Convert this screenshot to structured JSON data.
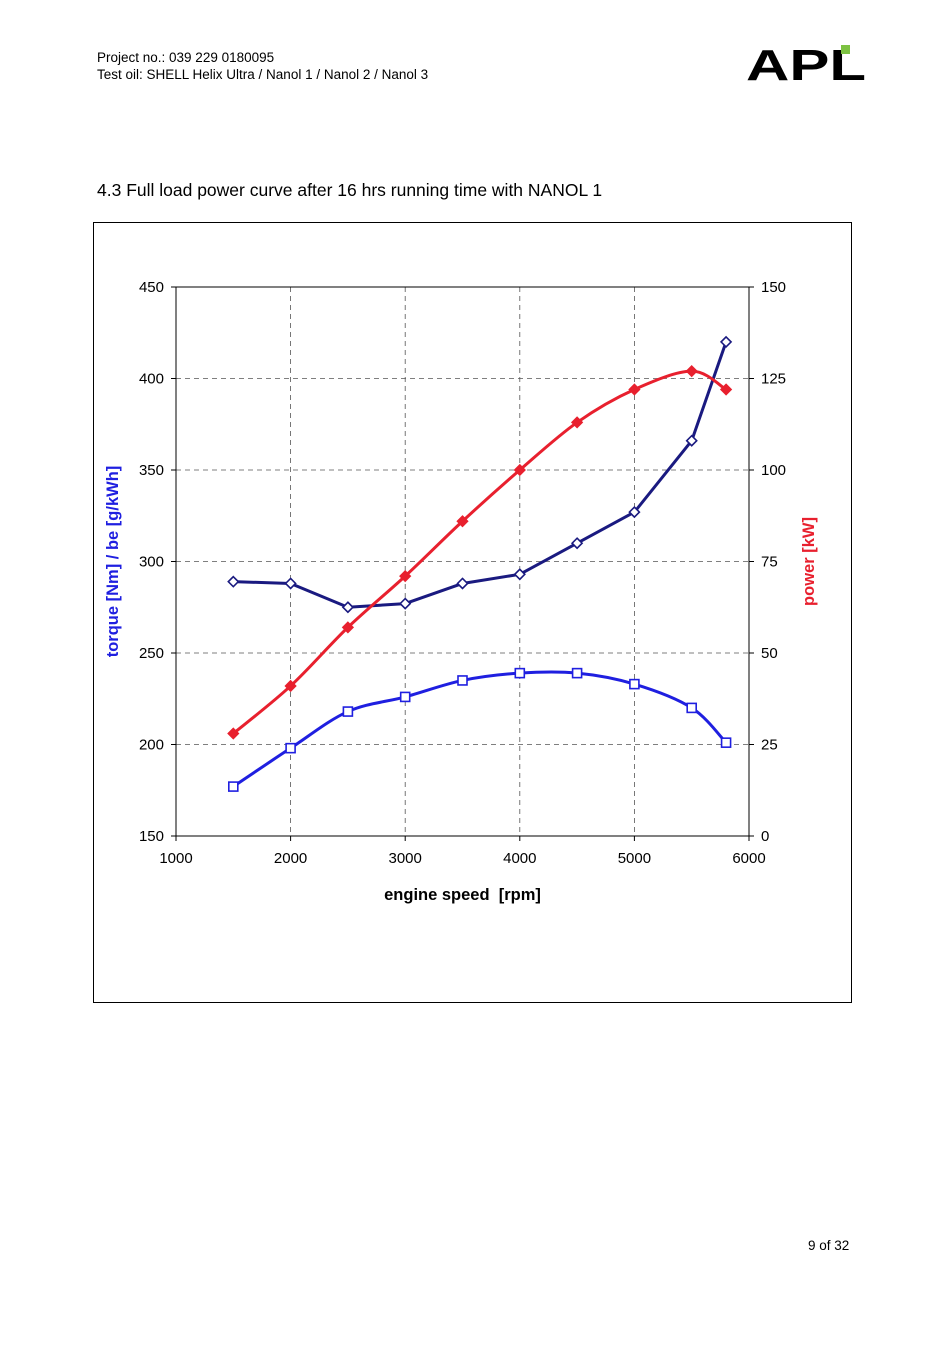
{
  "header": {
    "line1": "Project no.: 039 229 0180095",
    "line2": "Test oil: SHELL Helix Ultra / Nanol 1 / Nanol 2 / Nanol 3"
  },
  "logo": {
    "text": "APL",
    "colors": {
      "letters": "#000000",
      "accent": "#7dc242"
    }
  },
  "section_title": "4.3 Full load power curve after 16 hrs running time with NANOL 1",
  "chart_data": {
    "type": "line",
    "xlabel": "engine speed  [rpm]",
    "ylabel_left": "torque [Nm] / be [g/kWh]",
    "ylabel_right": "power [kW]",
    "xlim": [
      1000,
      6000
    ],
    "ylim_left": [
      150,
      450
    ],
    "ylim_right": [
      0,
      150
    ],
    "x_ticks": [
      "1000",
      "2000",
      "3000",
      "4000",
      "5000",
      "6000"
    ],
    "y_left_ticks": [
      "150",
      "200",
      "250",
      "300",
      "350",
      "400",
      "450"
    ],
    "y_right_ticks": [
      "0",
      "25",
      "50",
      "75",
      "100",
      "125",
      "150"
    ],
    "grid": "dashed",
    "legend": "none",
    "series": [
      {
        "axis": "left",
        "marker": "diamond",
        "color": "#1a1a80",
        "x": [
          1500,
          2000,
          2500,
          3000,
          3500,
          4000,
          4500,
          5000,
          5500,
          5800
        ],
        "values": [
          289,
          288,
          275,
          277,
          288,
          293,
          310,
          327,
          366,
          420
        ]
      },
      {
        "axis": "left",
        "marker": "square",
        "color": "#1f1fe0",
        "x": [
          1500,
          2000,
          2500,
          3000,
          3500,
          4000,
          4500,
          5000,
          5500,
          5800
        ],
        "values": [
          177,
          198,
          218,
          226,
          235,
          239,
          239,
          233,
          220,
          201
        ]
      },
      {
        "axis": "right",
        "marker": "diamond-filled",
        "color": "#e8202e",
        "x": [
          1500,
          2000,
          2500,
          3000,
          3500,
          4000,
          4500,
          5000,
          5500,
          5800
        ],
        "values": [
          28,
          41,
          57,
          71,
          86,
          100,
          113,
          122,
          127,
          122
        ]
      }
    ]
  },
  "footer": {
    "page": "9 of 32"
  }
}
